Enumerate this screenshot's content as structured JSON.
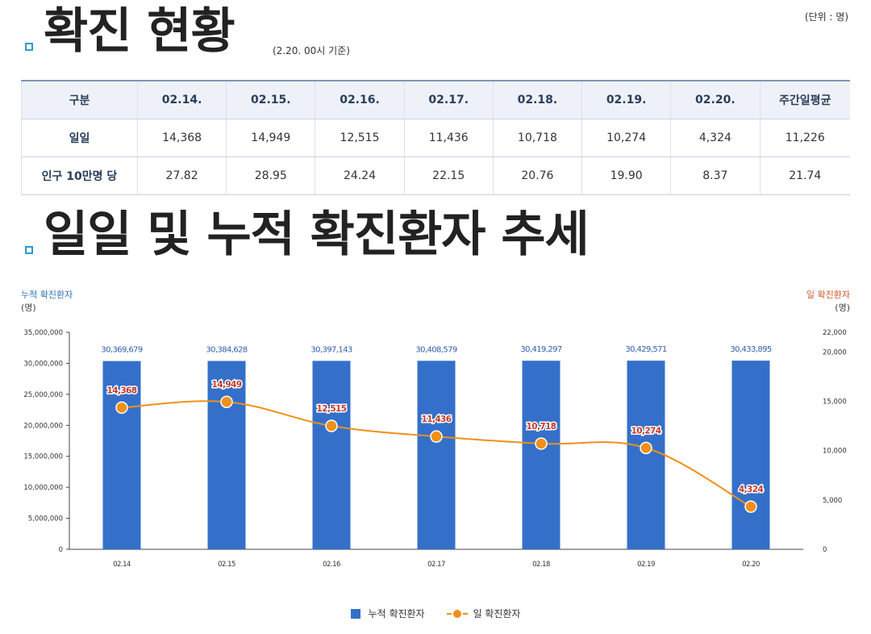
{
  "header": {
    "title1": "확진 현황",
    "basis": "(2.20. 00시 기준)",
    "unit": "(단위 : 명)",
    "title2": "일일 및 누적 확진환자 추세"
  },
  "table": {
    "columns": [
      "구분",
      "02.14.",
      "02.15.",
      "02.16.",
      "02.17.",
      "02.18.",
      "02.19.",
      "02.20.",
      "주간일평균"
    ],
    "rows": [
      [
        "일일",
        "14,368",
        "14,949",
        "12,515",
        "11,436",
        "10,718",
        "10,274",
        "4,324",
        "11,226"
      ],
      [
        "인구 10만명 당",
        "27.82",
        "28.95",
        "24.24",
        "22.15",
        "20.76",
        "19.90",
        "8.37",
        "21.74"
      ]
    ]
  },
  "chart_data": {
    "type": "bar+line",
    "categories": [
      "02.14",
      "02.15",
      "02.16",
      "02.17",
      "02.18",
      "02.19",
      "02.20"
    ],
    "series": [
      {
        "name": "누적 확진환자",
        "type": "bar",
        "axis": "left",
        "color": "#3470c9",
        "values": [
          30369679,
          30384628,
          30397143,
          30408579,
          30419297,
          30429571,
          30433895
        ],
        "labels": [
          "30,369,679",
          "30,384,628",
          "30,397,143",
          "30,408,579",
          "30,419,297",
          "30,429,571",
          "30,433,895"
        ]
      },
      {
        "name": "일 확진환자",
        "type": "line",
        "axis": "right",
        "color": "#f0901a",
        "values": [
          14368,
          14949,
          12515,
          11436,
          10718,
          10274,
          4324
        ],
        "labels": [
          "14,368",
          "14,949",
          "12,515",
          "11,436",
          "10,718",
          "10,274",
          "4,324"
        ]
      }
    ],
    "y_left": {
      "title": "누적 확진환자",
      "unit": "(명)",
      "min": 0,
      "max": 35000000,
      "ticks": [
        0,
        5000000,
        10000000,
        15000000,
        20000000,
        25000000,
        30000000,
        35000000
      ],
      "tick_labels": [
        "0",
        "5,000,000",
        "10,000,000",
        "15,000,000",
        "20,000,000",
        "25,000,000",
        "30,000,000",
        "35,000,000"
      ]
    },
    "y_right": {
      "title": "일 확진환자",
      "unit": "(명)",
      "min": 0,
      "max": 22000,
      "ticks": [
        0,
        5000,
        10000,
        15000,
        20000,
        22000
      ],
      "tick_labels": [
        "0",
        "5,000",
        "10,000",
        "15,000",
        "20,000",
        "22,000"
      ]
    },
    "legend": [
      "누적 확진환자",
      "일 확진환자"
    ],
    "legend_position": "bottom"
  }
}
